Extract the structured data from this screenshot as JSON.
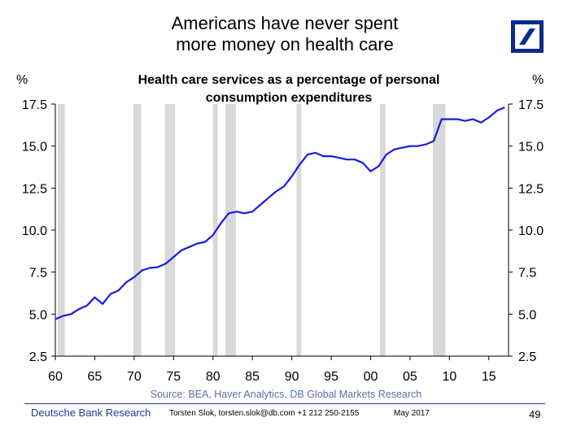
{
  "slide": {
    "title_line1": "Americans have never spent",
    "title_line2": "more money on health care",
    "source": "Source: BEA, Haver Analytics, DB Global Markets Research",
    "footer_org": "Deutsche Bank Research",
    "footer_contact": "Torsten Slok, torsten.slok@db.com  +1 212 250-2155",
    "footer_date": "May 2017",
    "page_number": "49",
    "logo": "deutsche-bank-logo"
  },
  "colors": {
    "line": "#1a1ae6",
    "recession": "#d9d9d9",
    "logo": "#0b2a8c",
    "footer": "#1f3c8f"
  },
  "chart_data": {
    "type": "line",
    "title_line1": "Health care services as a percentage of personal",
    "title_line2": "consumption expenditures",
    "ylabel_left": "%",
    "ylabel_right": "%",
    "xlim": [
      1960,
      2017.5
    ],
    "ylim": [
      2.5,
      17.5
    ],
    "yticks": [
      2.5,
      5.0,
      7.5,
      10.0,
      12.5,
      15.0,
      17.5
    ],
    "ytick_labels": [
      "2.5",
      "5.0",
      "7.5",
      "10.0",
      "12.5",
      "15.0",
      "17.5"
    ],
    "xticks": [
      1960,
      1965,
      1970,
      1975,
      1980,
      1985,
      1990,
      1995,
      2000,
      2005,
      2010,
      2015
    ],
    "xtick_labels": [
      "60",
      "65",
      "70",
      "75",
      "80",
      "85",
      "90",
      "95",
      "00",
      "05",
      "10",
      "15"
    ],
    "recessions": [
      [
        1960.3,
        1961.2
      ],
      [
        1969.9,
        1970.9
      ],
      [
        1973.9,
        1975.2
      ],
      [
        1980.0,
        1980.6
      ],
      [
        1981.6,
        1982.9
      ],
      [
        1990.6,
        1991.2
      ],
      [
        2001.2,
        2001.9
      ],
      [
        2007.9,
        2009.5
      ]
    ],
    "series": [
      {
        "x": [
          1960,
          1961,
          1962,
          1963,
          1964,
          1965,
          1966,
          1967,
          1968,
          1969,
          1970,
          1971,
          1972,
          1973,
          1974,
          1975,
          1976,
          1977,
          1978,
          1979,
          1980,
          1981,
          1982,
          1983,
          1984,
          1985,
          1986,
          1987,
          1988,
          1989,
          1990,
          1991,
          1992,
          1993,
          1994,
          1995,
          1996,
          1997,
          1998,
          1999,
          2000,
          2001,
          2002,
          2003,
          2004,
          2005,
          2006,
          2007,
          2008,
          2009,
          2010,
          2011,
          2012,
          2013,
          2014,
          2015,
          2016,
          2017
        ],
        "values": [
          4.7,
          4.9,
          5.0,
          5.3,
          5.5,
          6.0,
          5.6,
          6.2,
          6.4,
          6.9,
          7.2,
          7.6,
          7.75,
          7.8,
          8.0,
          8.4,
          8.8,
          9.0,
          9.2,
          9.3,
          9.7,
          10.4,
          11.0,
          11.1,
          11.0,
          11.1,
          11.5,
          11.9,
          12.3,
          12.6,
          13.2,
          13.9,
          14.5,
          14.6,
          14.4,
          14.4,
          14.3,
          14.2,
          14.2,
          14.0,
          13.5,
          13.8,
          14.5,
          14.8,
          14.9,
          15.0,
          15.0,
          15.1,
          15.3,
          16.6,
          16.6,
          16.6,
          16.5,
          16.6,
          16.4,
          16.7,
          17.1,
          17.3
        ]
      }
    ]
  }
}
